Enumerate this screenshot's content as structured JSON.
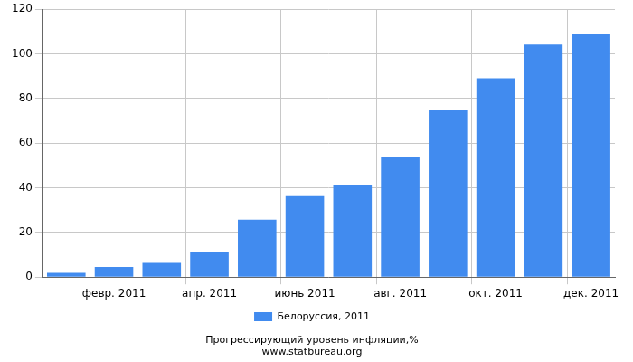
{
  "chart_data": {
    "type": "bar",
    "title": "Прогрессирующий уровень инфляции,%",
    "subtitle": "www.statbureau.org",
    "categories": [
      null,
      "февр. 2011",
      null,
      "апр. 2011",
      null,
      "июнь 2011",
      null,
      "авг. 2011",
      null,
      "окт. 2011",
      null,
      "дек. 2011"
    ],
    "series": [
      {
        "name": "Белоруссия, 2011",
        "color": "#418bef",
        "values": [
          1.9,
          4.5,
          6.4,
          11.0,
          25.7,
          36.3,
          41.4,
          53.6,
          74.9,
          89.1,
          104.2,
          108.7
        ]
      }
    ],
    "ylim": [
      0,
      120
    ],
    "yticks": [
      0,
      20,
      40,
      60,
      80,
      100,
      120
    ],
    "grid": true,
    "legend": "bottom"
  }
}
